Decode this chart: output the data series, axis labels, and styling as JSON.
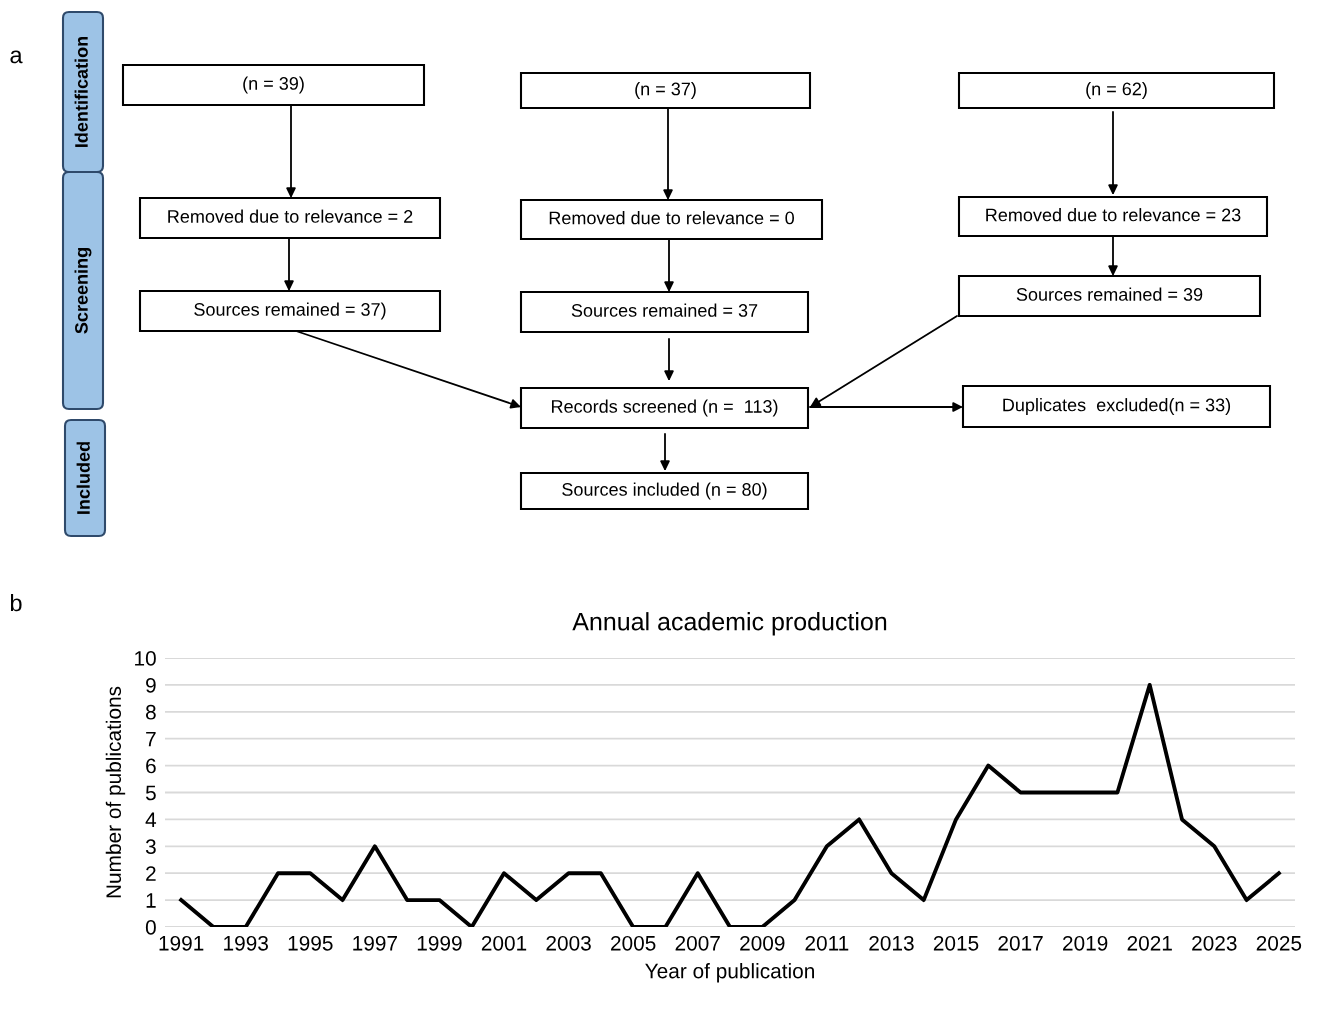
{
  "chart_data": [
    {
      "type": "other",
      "annotations": [
        "a",
        "Identification",
        "Screening",
        "Included",
        "(n = 39)",
        "(n = 37)",
        "(n = 62)",
        "Removed due to relevance = 2",
        "Removed due to relevance = 0",
        "Removed due to relevance = 23",
        "Sources remained = 37)",
        "Sources remained = 37",
        "Sources remained = 39",
        "Records screened (n =  113)",
        "Duplicates  excluded(n = 33)",
        "Sources included (n = 80)"
      ]
    },
    {
      "type": "line",
      "title": "Annual academic production",
      "xlabel": "Year of publication",
      "ylabel": "Number of publications",
      "categories": [
        "1991",
        null,
        "1993",
        null,
        "1995",
        null,
        "1997",
        null,
        "1999",
        null,
        "2001",
        null,
        "2003",
        null,
        "2005",
        null,
        "2007",
        null,
        "2009",
        null,
        "2011",
        null,
        "2013",
        null,
        "2015",
        null,
        "2017",
        null,
        "2019",
        null,
        "2021",
        null,
        "2023",
        null,
        "2025"
      ],
      "values": [
        1,
        0,
        0,
        2,
        2,
        1,
        3,
        1,
        1,
        0,
        2,
        1,
        2,
        2,
        0,
        0,
        2,
        0,
        0,
        1,
        3,
        4,
        2,
        1,
        4,
        6,
        5,
        5,
        5,
        5,
        9,
        4,
        3,
        1,
        2
      ],
      "color": "#000000",
      "ylim": [
        0,
        10
      ],
      "yticks": [
        0,
        1,
        2,
        3,
        4,
        5,
        6,
        7,
        8,
        9,
        10
      ],
      "grid": "y",
      "marker": "none",
      "line_style": "solid",
      "annotations": [
        "b"
      ]
    }
  ]
}
